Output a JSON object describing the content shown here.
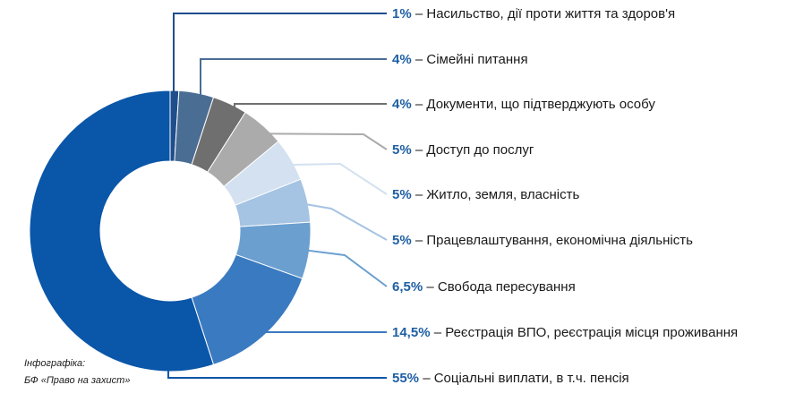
{
  "chart_data": {
    "type": "pie",
    "donut": true,
    "categories": [
      "Насильство, дії проти життя та здоров'я",
      "Сімейні питання",
      "Документи, що підтверджують особу",
      "Доступ до послуг",
      "Житло, земля, власність",
      "Працевлаштування, економічна діяльність",
      "Свобода пересування",
      "Реєстрація ВПО, реєстрація місця проживання",
      "Соціальні виплати, в т.ч. пенсія"
    ],
    "values": [
      1,
      4,
      4,
      5,
      5,
      5,
      6.5,
      14.5,
      55
    ],
    "value_labels": [
      "1%",
      "4%",
      "4%",
      "5%",
      "5%",
      "5%",
      "6,5%",
      "14,5%",
      "55%"
    ],
    "colors": [
      "#1f4e8c",
      "#4a6d94",
      "#6f6f6f",
      "#ababab",
      "#d3e1f0",
      "#a5c3e2",
      "#6a9fd0",
      "#3a7ac0",
      "#0a56a8"
    ],
    "label_separator": "–",
    "legend": "right"
  },
  "credit": {
    "line1": "Інфографіка:",
    "line2": "БФ «Право на захист»"
  },
  "style": {
    "value_color": "#1f5fa3",
    "text_color": "#1a1a1a"
  }
}
